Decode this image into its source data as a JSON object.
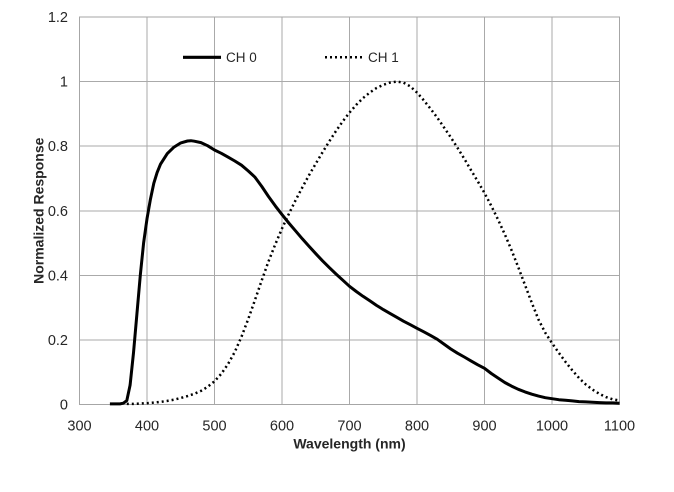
{
  "chart_data": {
    "type": "line",
    "title": "",
    "xlabel": "Wavelength (nm)",
    "ylabel": "Normalized Response",
    "xlim": [
      300,
      1100
    ],
    "ylim": [
      0,
      1.2
    ],
    "x_tick_labels": [
      "300",
      "400",
      "500",
      "600",
      "700",
      "800",
      "900",
      "1000",
      "1100"
    ],
    "y_tick_labels": [
      "0",
      "0.2",
      "0.4",
      "0.6",
      "0.8",
      "1",
      "1.2"
    ],
    "grid": true,
    "legend_position": "top-inside",
    "series": [
      {
        "name": "CH 0",
        "style": "solid",
        "color": "#000000",
        "x": [
          345,
          350,
          355,
          360,
          365,
          370,
          375,
          380,
          385,
          390,
          395,
          400,
          405,
          410,
          415,
          420,
          430,
          440,
          450,
          460,
          465,
          470,
          480,
          490,
          500,
          510,
          520,
          530,
          540,
          550,
          560,
          570,
          580,
          590,
          600,
          610,
          620,
          630,
          640,
          650,
          660,
          670,
          680,
          690,
          700,
          710,
          720,
          730,
          740,
          750,
          760,
          770,
          780,
          790,
          800,
          810,
          820,
          830,
          840,
          850,
          860,
          870,
          880,
          890,
          900,
          910,
          920,
          930,
          940,
          950,
          960,
          970,
          980,
          990,
          1000,
          1010,
          1020,
          1030,
          1040,
          1050,
          1060,
          1070,
          1080,
          1090,
          1100
        ],
        "values": [
          0.002,
          0.002,
          0.002,
          0.002,
          0.004,
          0.012,
          0.06,
          0.16,
          0.28,
          0.4,
          0.5,
          0.575,
          0.635,
          0.685,
          0.718,
          0.744,
          0.777,
          0.797,
          0.81,
          0.816,
          0.817,
          0.8155,
          0.811,
          0.801,
          0.788,
          0.778,
          0.766,
          0.754,
          0.741,
          0.723,
          0.704,
          0.675,
          0.644,
          0.615,
          0.588,
          0.562,
          0.538,
          0.513,
          0.49,
          0.467,
          0.445,
          0.424,
          0.404,
          0.385,
          0.366,
          0.35,
          0.335,
          0.321,
          0.307,
          0.294,
          0.282,
          0.27,
          0.258,
          0.247,
          0.236,
          0.225,
          0.214,
          0.202,
          0.187,
          0.172,
          0.159,
          0.147,
          0.135,
          0.123,
          0.112,
          0.096,
          0.082,
          0.068,
          0.057,
          0.047,
          0.039,
          0.032,
          0.026,
          0.021,
          0.018,
          0.015,
          0.013,
          0.011,
          0.009,
          0.008,
          0.007,
          0.006,
          0.005,
          0.005,
          0.004
        ]
      },
      {
        "name": "CH 1",
        "style": "dotted",
        "color": "#000000",
        "x": [
          370,
          380,
          390,
          400,
          410,
          420,
          430,
          440,
          450,
          460,
          470,
          480,
          490,
          500,
          510,
          520,
          530,
          540,
          550,
          560,
          570,
          580,
          590,
          600,
          610,
          620,
          630,
          640,
          650,
          660,
          670,
          680,
          690,
          700,
          710,
          720,
          730,
          740,
          750,
          760,
          770,
          780,
          790,
          800,
          810,
          820,
          830,
          840,
          850,
          860,
          870,
          880,
          890,
          900,
          910,
          920,
          930,
          940,
          950,
          960,
          970,
          980,
          990,
          1000,
          1010,
          1020,
          1030,
          1040,
          1050,
          1060,
          1070,
          1080,
          1090,
          1100
        ],
        "values": [
          0.002,
          0.002,
          0.003,
          0.004,
          0.006,
          0.008,
          0.011,
          0.015,
          0.02,
          0.026,
          0.033,
          0.042,
          0.055,
          0.072,
          0.095,
          0.125,
          0.163,
          0.21,
          0.265,
          0.324,
          0.385,
          0.443,
          0.496,
          0.545,
          0.59,
          0.632,
          0.672,
          0.71,
          0.746,
          0.781,
          0.815,
          0.847,
          0.877,
          0.904,
          0.928,
          0.949,
          0.966,
          0.98,
          0.99,
          0.997,
          1.0,
          0.997,
          0.985,
          0.966,
          0.942,
          0.916,
          0.888,
          0.858,
          0.827,
          0.795,
          0.761,
          0.726,
          0.691,
          0.655,
          0.615,
          0.573,
          0.527,
          0.478,
          0.425,
          0.37,
          0.315,
          0.263,
          0.222,
          0.19,
          0.16,
          0.132,
          0.106,
          0.082,
          0.062,
          0.046,
          0.033,
          0.023,
          0.016,
          0.012
        ]
      }
    ]
  },
  "colors": {
    "grid": "#aaaaaa",
    "frame": "#a6a6a6",
    "text": "#262626",
    "background": "#ffffff"
  }
}
